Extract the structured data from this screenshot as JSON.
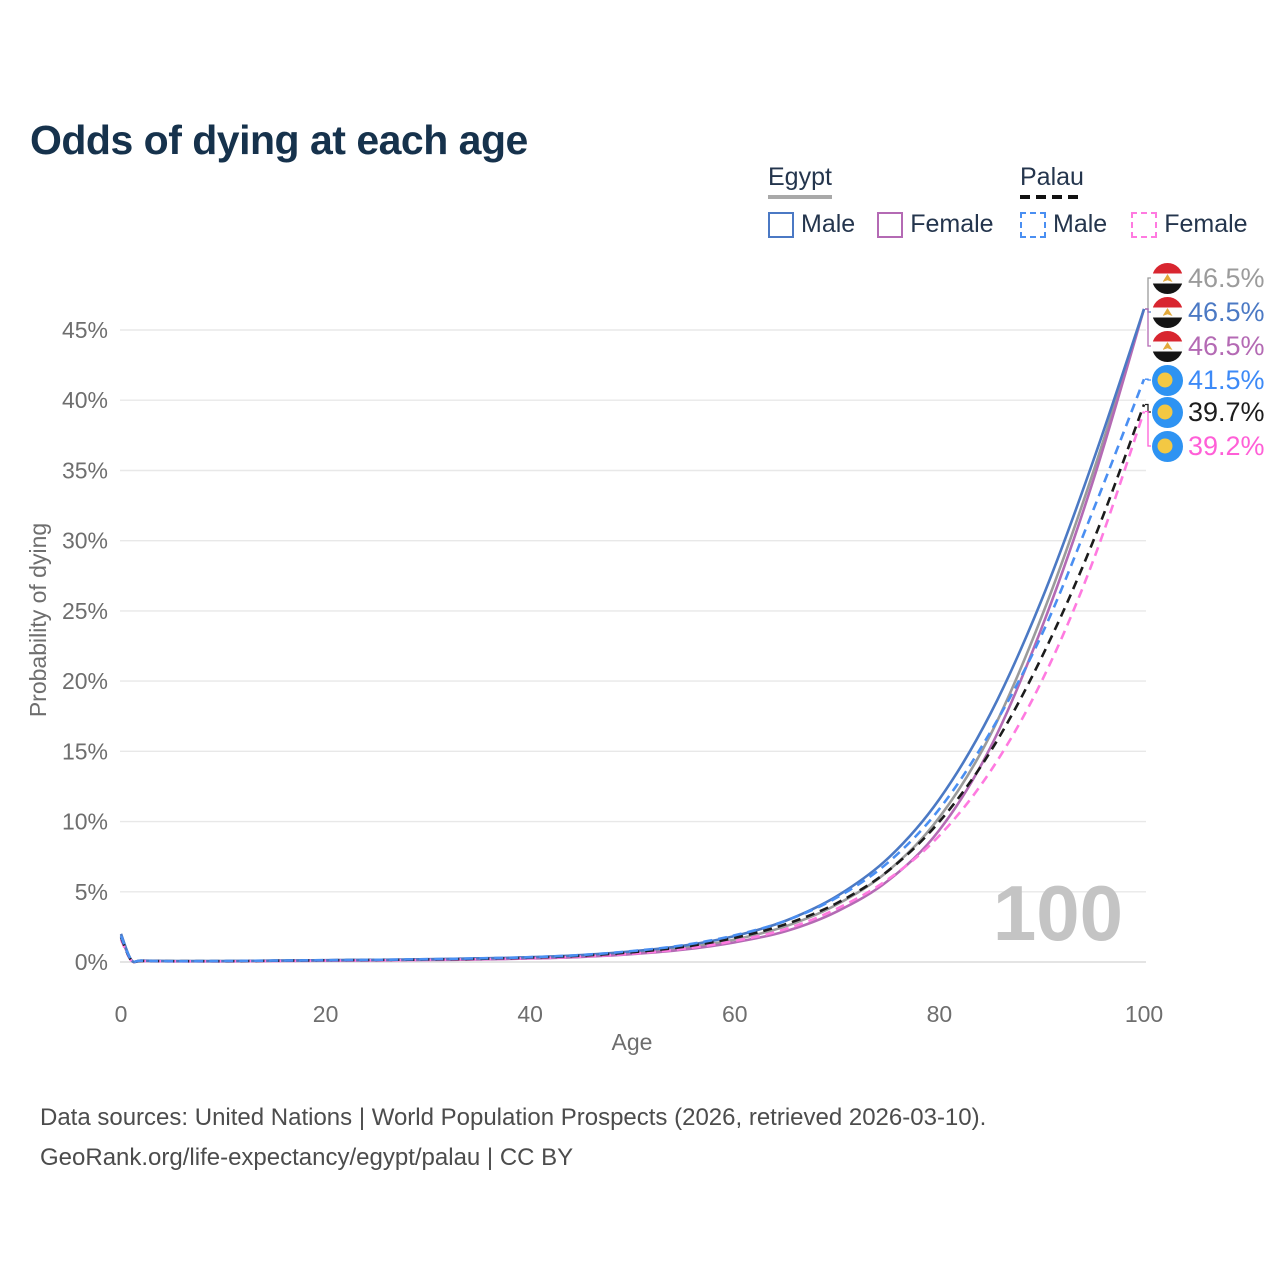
{
  "title": "Odds of dying at each age",
  "legend": {
    "groups": [
      {
        "id": "egypt",
        "title": "Egypt",
        "line_style": "solid",
        "items": [
          {
            "label": "Male",
            "color": "#4b79c4"
          },
          {
            "label": "Female",
            "color": "#b46ab4"
          }
        ]
      },
      {
        "id": "palau",
        "title": "Palau",
        "line_style": "dashed",
        "items": [
          {
            "label": "Male",
            "color": "#4a8ff2"
          },
          {
            "label": "Female",
            "color": "#ff7ae0"
          }
        ]
      }
    ]
  },
  "end_labels": [
    {
      "flag": "egypt",
      "value": "46.5%",
      "color": "#9b9b9b",
      "series": "egypt_both"
    },
    {
      "flag": "egypt",
      "value": "46.5%",
      "color": "#4b79c4",
      "series": "egypt_male"
    },
    {
      "flag": "egypt",
      "value": "46.5%",
      "color": "#b46ab4",
      "series": "egypt_female"
    },
    {
      "flag": "palau",
      "value": "41.5%",
      "color": "#3d8af7",
      "series": "palau_male"
    },
    {
      "flag": "palau",
      "value": "39.7%",
      "color": "#1c1c1c",
      "series": "palau_both"
    },
    {
      "flag": "palau",
      "value": "39.2%",
      "color": "#ff5fd7",
      "series": "palau_female"
    }
  ],
  "watermark": "100",
  "footer": {
    "line1": "Data sources: United Nations | World Population Prospects (2026, retrieved 2026-03-10).",
    "line2": "GeoRank.org/life-expectancy/egypt/palau | CC BY"
  },
  "chart_data": {
    "type": "line",
    "title": "Odds of dying at each age",
    "xlabel": "Age",
    "ylabel": "Probability of dying",
    "xlim": [
      0,
      100
    ],
    "ylim": [
      0,
      48
    ],
    "xticks": [
      0,
      20,
      40,
      60,
      80,
      100
    ],
    "yticks": [
      0,
      5,
      10,
      15,
      20,
      25,
      30,
      35,
      40,
      45
    ],
    "ytick_suffix": "%",
    "grid": "horizontal",
    "legend_position": "top-right",
    "hover_age": "100",
    "series": [
      {
        "id": "egypt_both",
        "name": "Egypt Both sexes",
        "country": "Egypt",
        "sex": "both",
        "color": "#9b9b9b",
        "dash": false,
        "end_value_pct": 46.5,
        "points": [
          [
            0,
            1.9
          ],
          [
            1,
            0.14
          ],
          [
            2,
            0.09
          ],
          [
            5,
            0.06
          ],
          [
            10,
            0.06
          ],
          [
            15,
            0.09
          ],
          [
            20,
            0.11
          ],
          [
            25,
            0.14
          ],
          [
            30,
            0.17
          ],
          [
            35,
            0.22
          ],
          [
            40,
            0.29
          ],
          [
            45,
            0.42
          ],
          [
            50,
            0.65
          ],
          [
            55,
            1.0
          ],
          [
            60,
            1.6
          ],
          [
            65,
            2.55
          ],
          [
            70,
            4.1
          ],
          [
            75,
            6.5
          ],
          [
            80,
            10.3
          ],
          [
            85,
            16.2
          ],
          [
            90,
            24.6
          ],
          [
            95,
            34.8
          ],
          [
            100,
            46.5
          ]
        ]
      },
      {
        "id": "egypt_female",
        "name": "Egypt Female",
        "country": "Egypt",
        "sex": "female",
        "color": "#b46ab4",
        "dash": false,
        "end_value_pct": 46.5,
        "points": [
          [
            0,
            1.8
          ],
          [
            1,
            0.12
          ],
          [
            2,
            0.08
          ],
          [
            5,
            0.05
          ],
          [
            10,
            0.05
          ],
          [
            15,
            0.07
          ],
          [
            20,
            0.09
          ],
          [
            25,
            0.11
          ],
          [
            30,
            0.14
          ],
          [
            35,
            0.18
          ],
          [
            40,
            0.25
          ],
          [
            45,
            0.36
          ],
          [
            50,
            0.56
          ],
          [
            55,
            0.88
          ],
          [
            60,
            1.4
          ],
          [
            65,
            2.2
          ],
          [
            70,
            3.6
          ],
          [
            75,
            5.8
          ],
          [
            80,
            9.4
          ],
          [
            85,
            15.3
          ],
          [
            90,
            23.8
          ],
          [
            95,
            34.2
          ],
          [
            100,
            46.5
          ]
        ]
      },
      {
        "id": "egypt_male",
        "name": "Egypt Male",
        "country": "Egypt",
        "sex": "male",
        "color": "#4b79c4",
        "dash": false,
        "end_value_pct": 46.5,
        "points": [
          [
            0,
            2.0
          ],
          [
            1,
            0.16
          ],
          [
            2,
            0.1
          ],
          [
            5,
            0.07
          ],
          [
            10,
            0.07
          ],
          [
            15,
            0.1
          ],
          [
            20,
            0.13
          ],
          [
            25,
            0.16
          ],
          [
            30,
            0.2
          ],
          [
            35,
            0.26
          ],
          [
            40,
            0.34
          ],
          [
            45,
            0.49
          ],
          [
            50,
            0.76
          ],
          [
            55,
            1.16
          ],
          [
            60,
            1.85
          ],
          [
            65,
            2.95
          ],
          [
            70,
            4.7
          ],
          [
            75,
            7.4
          ],
          [
            80,
            11.6
          ],
          [
            85,
            17.7
          ],
          [
            90,
            25.8
          ],
          [
            95,
            35.6
          ],
          [
            100,
            46.5
          ]
        ]
      },
      {
        "id": "palau_female",
        "name": "Palau Female",
        "country": "Palau",
        "sex": "female",
        "color": "#ff7ae0",
        "dash": true,
        "end_value_pct": 39.2,
        "points": [
          [
            0,
            1.6
          ],
          [
            1,
            0.11
          ],
          [
            2,
            0.07
          ],
          [
            5,
            0.05
          ],
          [
            10,
            0.05
          ],
          [
            15,
            0.07
          ],
          [
            20,
            0.1
          ],
          [
            25,
            0.12
          ],
          [
            30,
            0.15
          ],
          [
            35,
            0.2
          ],
          [
            40,
            0.27
          ],
          [
            45,
            0.39
          ],
          [
            50,
            0.6
          ],
          [
            55,
            0.95
          ],
          [
            60,
            1.5
          ],
          [
            65,
            2.35
          ],
          [
            70,
            3.8
          ],
          [
            75,
            5.9
          ],
          [
            80,
            9.0
          ],
          [
            85,
            13.6
          ],
          [
            90,
            20.0
          ],
          [
            95,
            28.5
          ],
          [
            100,
            39.2
          ]
        ]
      },
      {
        "id": "palau_both",
        "name": "Palau Both sexes",
        "country": "Palau",
        "sex": "both",
        "color": "#1c1c1c",
        "dash": true,
        "end_value_pct": 39.7,
        "points": [
          [
            0,
            1.75
          ],
          [
            1,
            0.13
          ],
          [
            2,
            0.08
          ],
          [
            5,
            0.06
          ],
          [
            10,
            0.06
          ],
          [
            15,
            0.09
          ],
          [
            20,
            0.12
          ],
          [
            25,
            0.15
          ],
          [
            30,
            0.18
          ],
          [
            35,
            0.23
          ],
          [
            40,
            0.31
          ],
          [
            45,
            0.45
          ],
          [
            50,
            0.7
          ],
          [
            55,
            1.08
          ],
          [
            60,
            1.72
          ],
          [
            65,
            2.7
          ],
          [
            70,
            4.2
          ],
          [
            75,
            6.5
          ],
          [
            80,
            10.0
          ],
          [
            85,
            15.0
          ],
          [
            90,
            21.7
          ],
          [
            95,
            29.9
          ],
          [
            100,
            39.7
          ]
        ]
      },
      {
        "id": "palau_male",
        "name": "Palau Male",
        "country": "Palau",
        "sex": "male",
        "color": "#4a8ff2",
        "dash": true,
        "end_value_pct": 41.5,
        "points": [
          [
            0,
            1.85
          ],
          [
            1,
            0.15
          ],
          [
            2,
            0.09
          ],
          [
            5,
            0.06
          ],
          [
            10,
            0.07
          ],
          [
            15,
            0.1
          ],
          [
            20,
            0.13
          ],
          [
            25,
            0.16
          ],
          [
            30,
            0.2
          ],
          [
            35,
            0.26
          ],
          [
            40,
            0.34
          ],
          [
            45,
            0.5
          ],
          [
            50,
            0.78
          ],
          [
            55,
            1.2
          ],
          [
            60,
            1.9
          ],
          [
            65,
            2.95
          ],
          [
            70,
            4.6
          ],
          [
            75,
            7.1
          ],
          [
            80,
            10.9
          ],
          [
            85,
            16.4
          ],
          [
            90,
            23.3
          ],
          [
            95,
            32.1
          ],
          [
            100,
            41.5
          ]
        ]
      }
    ]
  }
}
